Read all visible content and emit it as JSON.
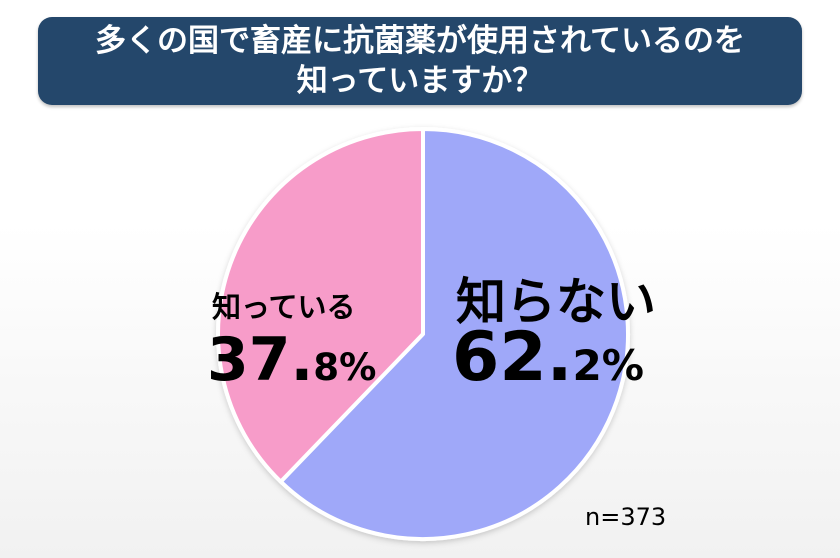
{
  "title": {
    "line1": "多くの国で畜産に抗菌薬が使用されているのを",
    "line2": "知っていますか？"
  },
  "chart_data": {
    "type": "pie",
    "title": "多くの国で畜産に抗菌薬が使用されているのを知っていますか？",
    "slices": [
      {
        "label": "知らない",
        "value": 62.2,
        "display_int": "62.",
        "display_dec": "2%",
        "color": "#9fa8f9"
      },
      {
        "label": "知っている",
        "value": 37.8,
        "display_int": "37.",
        "display_dec": "8%",
        "color": "#f79cc9"
      }
    ],
    "start_angle_deg": 0,
    "direction": "clockwise",
    "note": "n=373"
  },
  "colors": {
    "banner": "#24476b",
    "slice_border": "#ffffff"
  }
}
